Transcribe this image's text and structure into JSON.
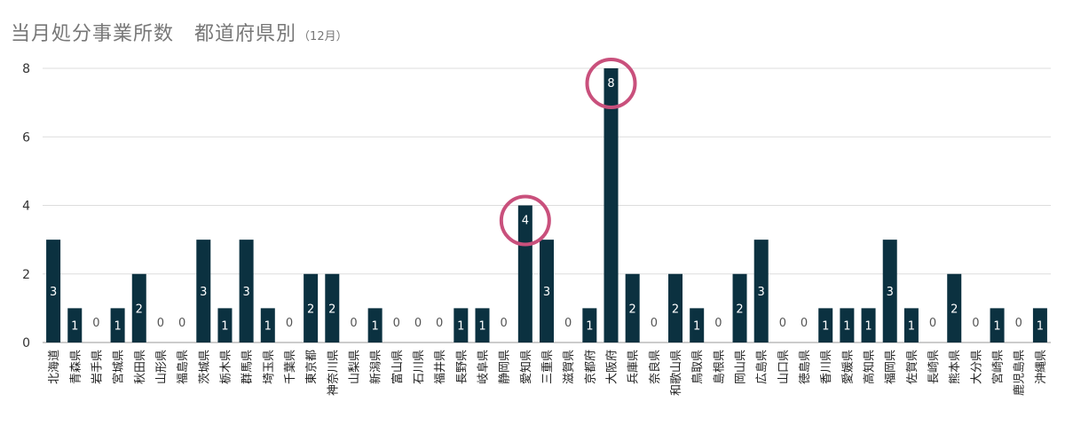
{
  "chart_data": {
    "type": "bar",
    "title": "当月処分事業所数",
    "subtitle": "都道府県別",
    "subtitle_note": "（12月）",
    "ylim": [
      0,
      8
    ],
    "yticks": [
      0,
      2,
      4,
      6,
      8
    ],
    "grid": true,
    "bar_color": "#0b3140",
    "highlight_color": "#c9507c",
    "highlighted_categories": [
      "愛知県",
      "大阪府"
    ],
    "categories": [
      "北海道",
      "青森県",
      "岩手県",
      "宮城県",
      "秋田県",
      "山形県",
      "福島県",
      "茨城県",
      "栃木県",
      "群馬県",
      "埼玉県",
      "千葉県",
      "東京都",
      "神奈川県",
      "山梨県",
      "新潟県",
      "富山県",
      "石川県",
      "福井県",
      "長野県",
      "岐阜県",
      "静岡県",
      "愛知県",
      "三重県",
      "滋賀県",
      "京都府",
      "大阪府",
      "兵庫県",
      "奈良県",
      "和歌山県",
      "鳥取県",
      "島根県",
      "岡山県",
      "広島県",
      "山口県",
      "徳島県",
      "香川県",
      "愛媛県",
      "高知県",
      "福岡県",
      "佐賀県",
      "長崎県",
      "熊本県",
      "大分県",
      "宮崎県",
      "鹿児島県",
      "沖縄県"
    ],
    "values": [
      3,
      1,
      0,
      1,
      2,
      0,
      0,
      3,
      1,
      3,
      1,
      0,
      2,
      2,
      0,
      1,
      0,
      0,
      0,
      1,
      1,
      0,
      4,
      3,
      0,
      1,
      8,
      2,
      0,
      2,
      1,
      0,
      2,
      3,
      0,
      0,
      1,
      1,
      1,
      3,
      1,
      0,
      2,
      0,
      1,
      0,
      1
    ]
  }
}
